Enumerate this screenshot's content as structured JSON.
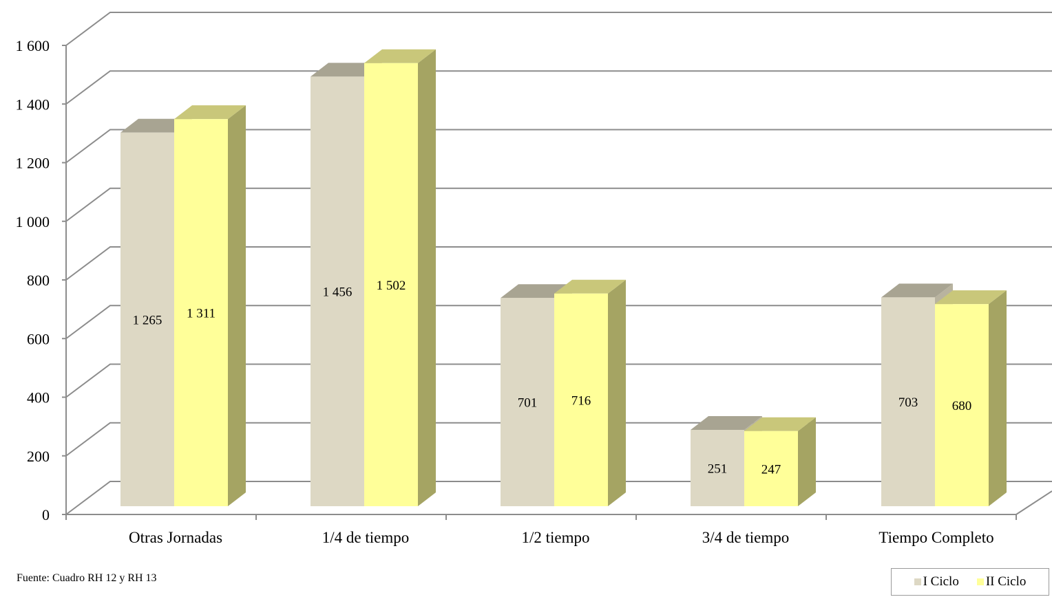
{
  "chart_data": {
    "type": "bar",
    "categories": [
      "Otras Jornadas",
      "1/4 de tiempo",
      "1/2 tiempo",
      "3/4 de tiempo",
      "Tiempo Completo"
    ],
    "series": [
      {
        "name": "I Ciclo",
        "values": [
          1265,
          1456,
          701,
          251,
          703
        ],
        "labels": [
          "1 265",
          "1 456",
          "701",
          "251",
          "703"
        ]
      },
      {
        "name": "II Ciclo",
        "values": [
          1311,
          1502,
          716,
          247,
          680
        ],
        "labels": [
          "1 311",
          "1 502",
          "716",
          "247",
          "680"
        ]
      }
    ],
    "ylim": [
      0,
      1600
    ],
    "yticks": [
      {
        "value": 0,
        "label": "0"
      },
      {
        "value": 200,
        "label": "200"
      },
      {
        "value": 400,
        "label": "400"
      },
      {
        "value": 600,
        "label": "600"
      },
      {
        "value": 800,
        "label": "800"
      },
      {
        "value": 1000,
        "label": "1 000"
      },
      {
        "value": 1200,
        "label": "1 200"
      },
      {
        "value": 1400,
        "label": "1 400"
      },
      {
        "value": 1600,
        "label": "1 600"
      }
    ],
    "grid": true,
    "legend_position": "bottom-right",
    "title": "",
    "xlabel": "",
    "ylabel": ""
  },
  "colors": {
    "series1_front": "#ddd8c4",
    "series1_top": "#a8a492",
    "series1_side": "#b8b39f",
    "series2_front": "#ffff99",
    "series2_top": "#c9c77a",
    "series2_side": "#a5a463",
    "grid": "#8c8c8c",
    "axis": "#8c8c8c"
  },
  "source_note": "Fuente: Cuadro RH 12 y RH 13",
  "legend": {
    "items": [
      {
        "label": "I Ciclo",
        "color": "#ddd8c4"
      },
      {
        "label": "II Ciclo",
        "color": "#ffff99"
      }
    ]
  }
}
